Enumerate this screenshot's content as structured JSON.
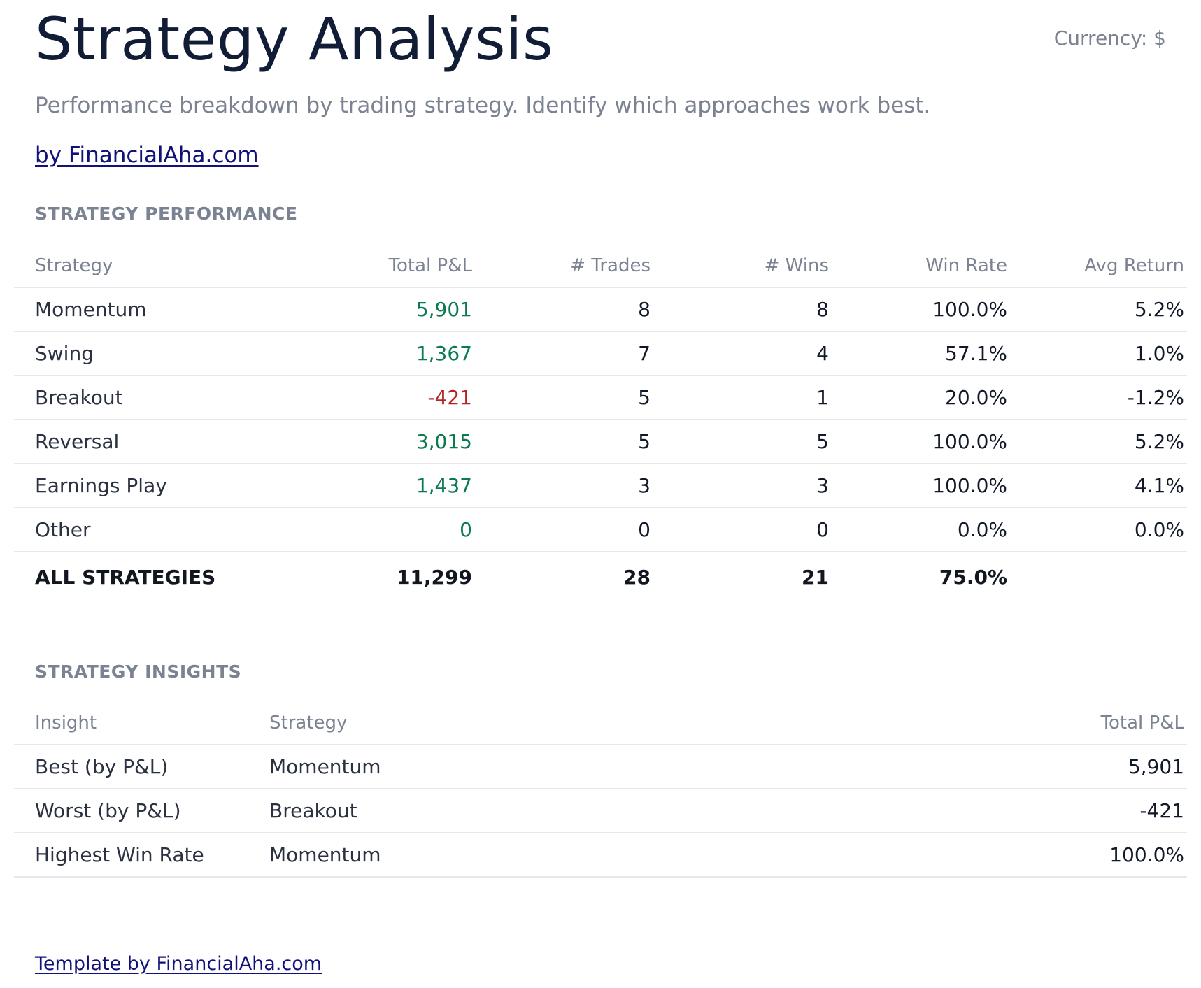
{
  "header": {
    "title": "Strategy Analysis",
    "currency": "Currency: $",
    "subtitle": "Performance breakdown by trading strategy. Identify which approaches work best.",
    "byline": "by FinancialAha.com"
  },
  "performance": {
    "section_title": "STRATEGY PERFORMANCE",
    "columns": [
      "Strategy",
      "Total P&L",
      "# Trades",
      "# Wins",
      "Win Rate",
      "Avg Return"
    ],
    "rows": [
      {
        "strategy": "Momentum",
        "pnl": "5,901",
        "pnl_sign": "pos",
        "trades": "8",
        "wins": "8",
        "win_rate": "100.0%",
        "avg_return": "5.2%"
      },
      {
        "strategy": "Swing",
        "pnl": "1,367",
        "pnl_sign": "pos",
        "trades": "7",
        "wins": "4",
        "win_rate": "57.1%",
        "avg_return": "1.0%"
      },
      {
        "strategy": "Breakout",
        "pnl": "-421",
        "pnl_sign": "neg",
        "trades": "5",
        "wins": "1",
        "win_rate": "20.0%",
        "avg_return": "-1.2%"
      },
      {
        "strategy": "Reversal",
        "pnl": "3,015",
        "pnl_sign": "pos",
        "trades": "5",
        "wins": "5",
        "win_rate": "100.0%",
        "avg_return": "5.2%"
      },
      {
        "strategy": "Earnings Play",
        "pnl": "1,437",
        "pnl_sign": "pos",
        "trades": "3",
        "wins": "3",
        "win_rate": "100.0%",
        "avg_return": "4.1%"
      },
      {
        "strategy": "Other",
        "pnl": "0",
        "pnl_sign": "pos",
        "trades": "0",
        "wins": "0",
        "win_rate": "0.0%",
        "avg_return": "0.0%"
      }
    ],
    "total": {
      "label": "ALL STRATEGIES",
      "pnl": "11,299",
      "trades": "28",
      "wins": "21",
      "win_rate": "75.0%",
      "avg_return": ""
    }
  },
  "insights": {
    "section_title": "STRATEGY INSIGHTS",
    "columns": [
      "Insight",
      "Strategy",
      "Total P&L"
    ],
    "rows": [
      {
        "insight": "Best (by P&L)",
        "strategy": "Momentum",
        "value": "5,901"
      },
      {
        "insight": "Worst (by P&L)",
        "strategy": "Breakout",
        "value": "-421"
      },
      {
        "insight": "Highest Win Rate",
        "strategy": "Momentum",
        "value": "100.0%"
      }
    ]
  },
  "footer": {
    "link": "Template by FinancialAha.com"
  },
  "colors": {
    "positive": "#0a7a4f",
    "negative": "#b42323",
    "link": "#11117a",
    "muted": "#7b8291",
    "title": "#111d36"
  }
}
